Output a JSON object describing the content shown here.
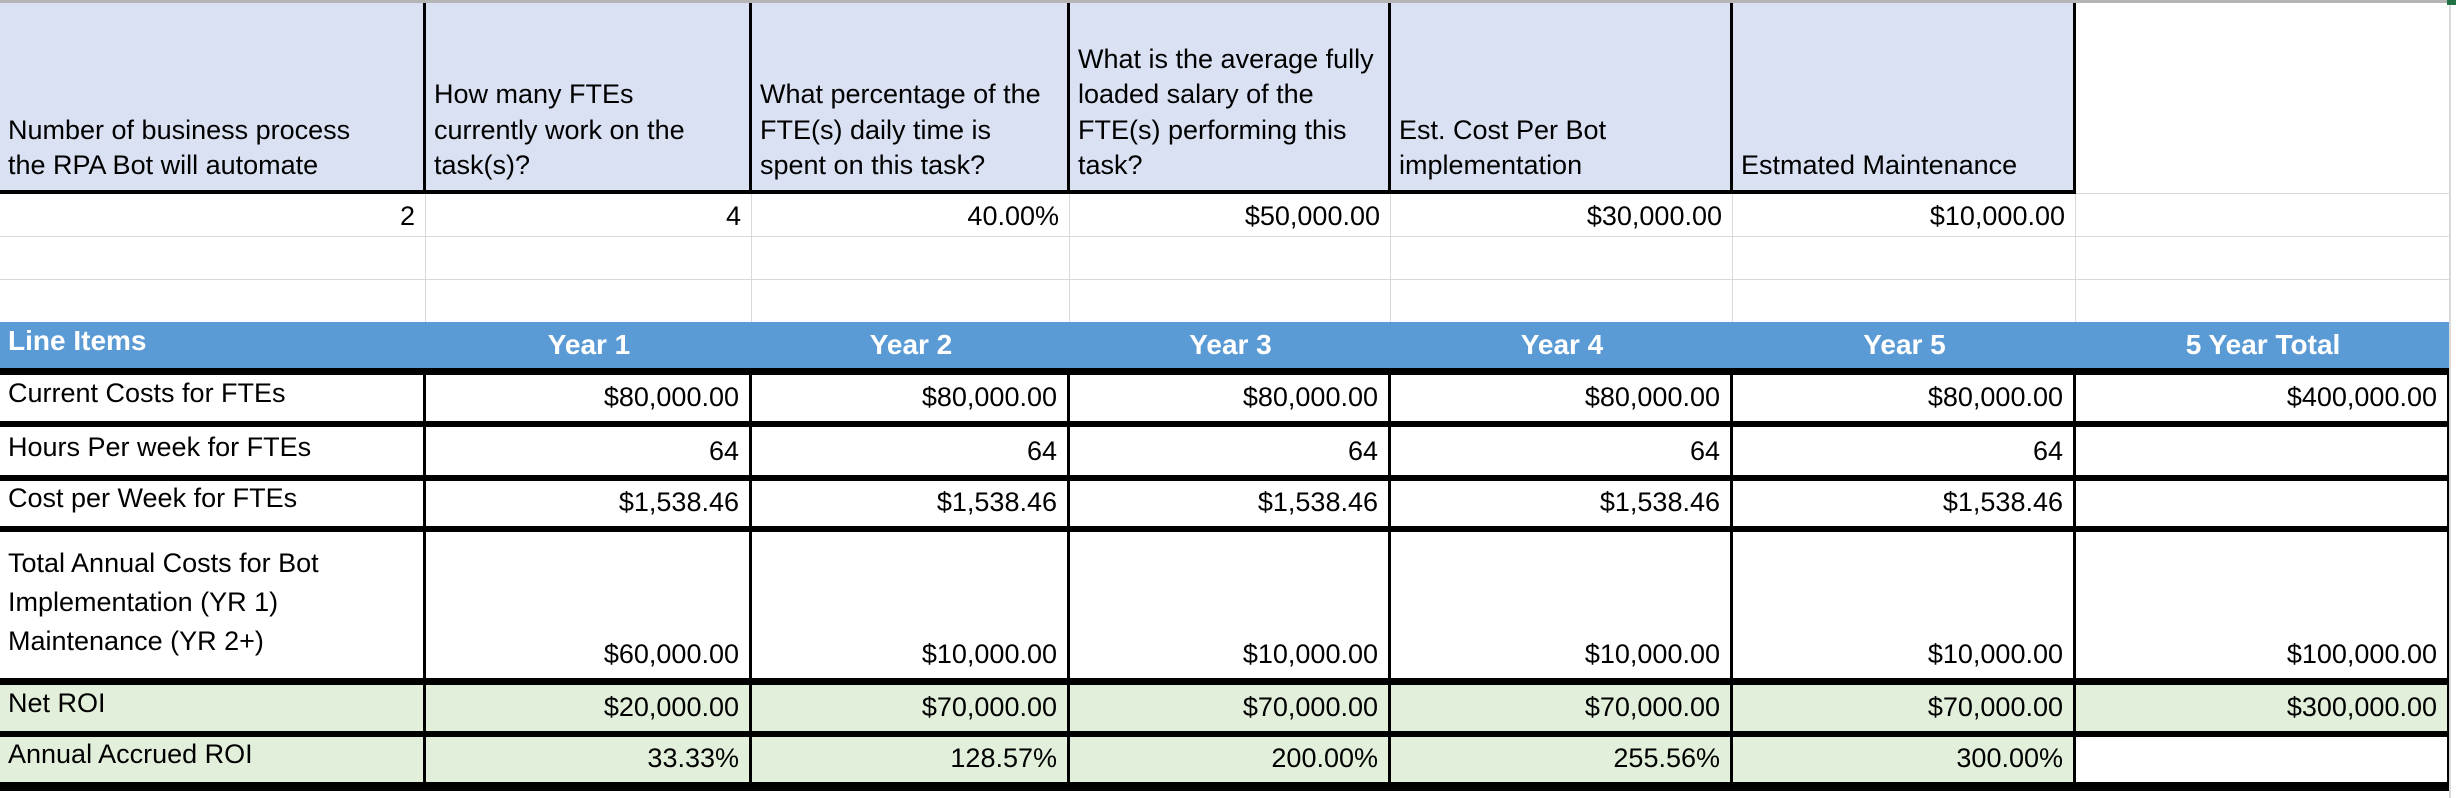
{
  "colors": {
    "input_header_fill": "#D9E1F2",
    "table_header_fill": "#5B9BD5",
    "table_header_text": "#FFFFFF",
    "roi_row_fill": "#E2EFDA",
    "border_black": "#000000",
    "gridline_gray": "#D9D9D9",
    "sheet_top_edge_gray": "#B5B5B5",
    "sheet_corner_green": "#217346"
  },
  "inputs": {
    "fields": [
      {
        "label": "Number of business process the RPA Bot will automate",
        "value": "2"
      },
      {
        "label": "How many FTEs currently work on the task(s)?",
        "value": "4"
      },
      {
        "label": "What percentage of the FTE(s) daily time is spent on this task?",
        "value": "40.00%"
      },
      {
        "label": "What is the average fully loaded salary of the FTE(s) performing this task?",
        "value": "$50,000.00"
      },
      {
        "label": "Est. Cost Per Bot implementation",
        "value": "$30,000.00"
      },
      {
        "label": "Estmated Maintenance",
        "value": "$10,000.00"
      }
    ]
  },
  "roi": {
    "headers": [
      "Line Items",
      "Year 1",
      "Year 2",
      "Year 3",
      "Year 4",
      "Year 5",
      "5 Year Total"
    ],
    "rows": [
      {
        "label": "Current Costs for FTEs",
        "values": [
          "$80,000.00",
          "$80,000.00",
          "$80,000.00",
          "$80,000.00",
          "$80,000.00"
        ],
        "total": "$400,000.00"
      },
      {
        "label": "Hours Per week for FTEs",
        "values": [
          "64",
          "64",
          "64",
          "64",
          "64"
        ],
        "total": ""
      },
      {
        "label": "Cost per Week for FTEs",
        "values": [
          "$1,538.46",
          "$1,538.46",
          "$1,538.46",
          "$1,538.46",
          "$1,538.46"
        ],
        "total": ""
      },
      {
        "label": "Total Annual Costs for Bot Implementation (YR 1) Maintenance (YR 2+)",
        "values": [
          "$60,000.00",
          "$10,000.00",
          "$10,000.00",
          "$10,000.00",
          "$10,000.00"
        ],
        "total": "$100,000.00"
      },
      {
        "label": "Net ROI",
        "values": [
          "$20,000.00",
          "$70,000.00",
          "$70,000.00",
          "$70,000.00",
          "$70,000.00"
        ],
        "total": "$300,000.00"
      },
      {
        "label": "Annual Accrued ROI",
        "values": [
          "33.33%",
          "128.57%",
          "200.00%",
          "255.56%",
          "300.00%"
        ],
        "total": ""
      }
    ]
  }
}
